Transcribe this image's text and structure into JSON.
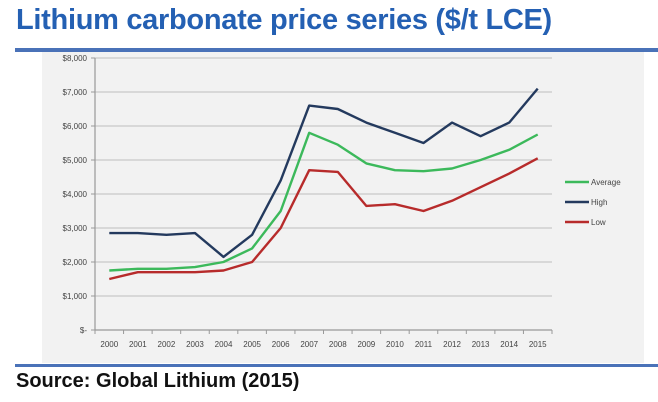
{
  "header": {
    "title": "Lithium carbonate price series ($/t LCE)"
  },
  "footer": {
    "source": "Source: Global Lithium (2015)"
  },
  "colors": {
    "title": "#2460b3",
    "rule": "#4a72b8",
    "Average": "#3cb95b",
    "High": "#243a5e",
    "Low": "#b72b2b",
    "grid": "#c8c8c8",
    "background": "#f2f2f2"
  },
  "chart_data": {
    "type": "line",
    "title": "Lithium carbonate price series ($/t LCE)",
    "xlabel": "",
    "ylabel": "",
    "x": [
      "2000",
      "2001",
      "2002",
      "2003",
      "2004",
      "2005",
      "2006",
      "2007",
      "2008",
      "2009",
      "2010",
      "2011",
      "2012",
      "2013",
      "2014",
      "2015"
    ],
    "series": [
      {
        "name": "Average",
        "values": [
          1750,
          1800,
          1800,
          1850,
          2000,
          2400,
          3500,
          5800,
          5450,
          4900,
          4700,
          4670,
          4750,
          5000,
          5300,
          5750
        ]
      },
      {
        "name": "High",
        "values": [
          2850,
          2850,
          2800,
          2850,
          2150,
          2800,
          4400,
          6600,
          6500,
          6100,
          5800,
          5500,
          6100,
          5700,
          6100,
          7100
        ]
      },
      {
        "name": "Low",
        "values": [
          1500,
          1700,
          1700,
          1700,
          1750,
          2000,
          3000,
          4700,
          4650,
          3650,
          3700,
          3500,
          3800,
          4200,
          4600,
          5050
        ]
      }
    ],
    "ylim": [
      0,
      8000
    ],
    "yticks": [
      0,
      1000,
      2000,
      3000,
      4000,
      5000,
      6000,
      7000,
      8000
    ],
    "ytick_labels": [
      "$-",
      "$1,000",
      "$2,000",
      "$3,000",
      "$4,000",
      "$5,000",
      "$6,000",
      "$7,000",
      "$8,000"
    ],
    "grid": true,
    "legend": {
      "position": "right",
      "entries": [
        "Average",
        "High",
        "Low"
      ]
    }
  }
}
